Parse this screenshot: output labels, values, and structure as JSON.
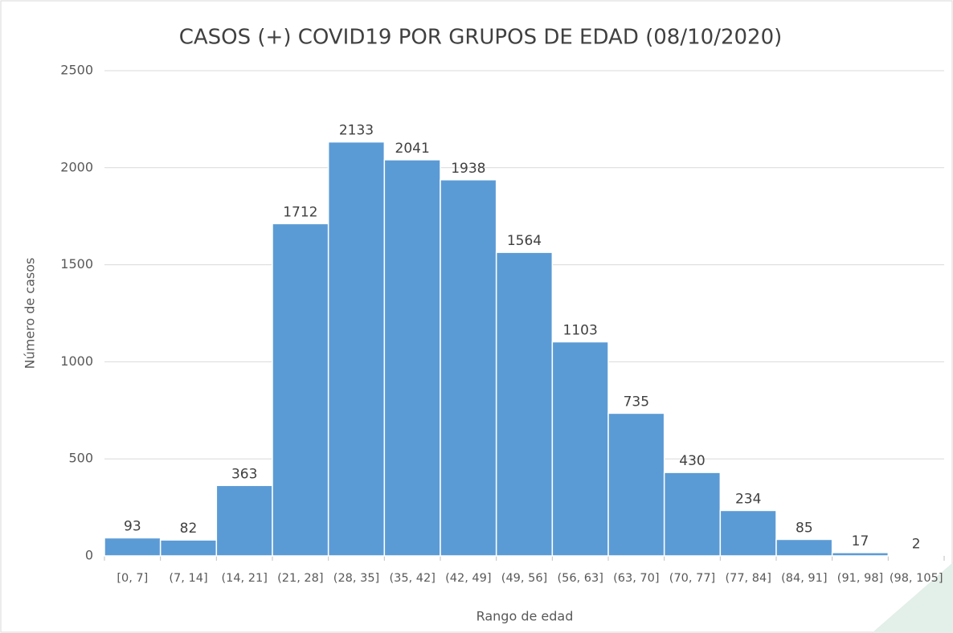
{
  "chart_data": {
    "type": "bar",
    "title": "CASOS (+) COVID19 POR GRUPOS DE EDAD (08/10/2020)",
    "x_label": "Rango de edad",
    "y_label": "Número de casos",
    "categories": [
      "[0, 7]",
      "(7, 14]",
      "(14, 21]",
      "(21, 28]",
      "(28, 35]",
      "(35, 42]",
      "(42, 49]",
      "(49, 56]",
      "(56, 63]",
      "(63, 70]",
      "(70, 77]",
      "(77, 84]",
      "(84, 91]",
      "(91, 98]",
      "(98, 105]"
    ],
    "values": [
      93,
      82,
      363,
      1712,
      2133,
      2041,
      1938,
      1564,
      1103,
      735,
      430,
      234,
      85,
      17,
      2
    ],
    "color": "#5b9bd5",
    "ylim": [
      0,
      2500
    ],
    "yticks": [
      0,
      500,
      1000,
      1500,
      2000,
      2500
    ],
    "grid": true
  }
}
